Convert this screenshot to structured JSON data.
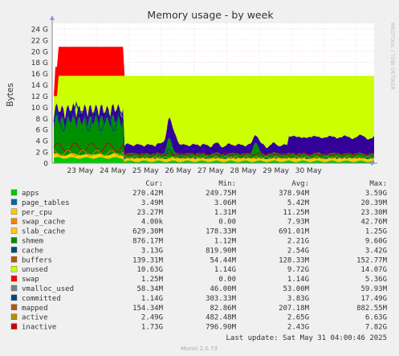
{
  "chart_data": {
    "type": "area",
    "title": "Memory usage - by week",
    "ylabel": "Bytes",
    "side_label": "RRDTOOL / TOBI OETIKER",
    "ylim": [
      0,
      25
    ],
    "y_unit": "G",
    "y_ticks": [
      "0",
      "2 G",
      "4 G",
      "6 G",
      "8 G",
      "10 G",
      "12 G",
      "14 G",
      "16 G",
      "18 G",
      "20 G",
      "22 G",
      "24 G"
    ],
    "x_ticks": [
      "23 May",
      "24 May",
      "25 May",
      "26 May",
      "27 May",
      "28 May",
      "29 May",
      "30 May"
    ],
    "grid": true,
    "legend_headers": [
      "Cur:",
      "Min:",
      "Avg:",
      "Max:"
    ],
    "series": [
      {
        "name": "apps",
        "color": "#00cc00",
        "cur": "270.42M",
        "min": "249.75M",
        "avg": "378.94M",
        "max": "3.59G"
      },
      {
        "name": "page_tables",
        "color": "#0066b3",
        "cur": "3.49M",
        "min": "3.06M",
        "avg": "5.42M",
        "max": "20.39M"
      },
      {
        "name": "per_cpu",
        "color": "#ffcc00",
        "cur": "23.27M",
        "min": "1.31M",
        "avg": "11.25M",
        "max": "23.30M"
      },
      {
        "name": "swap_cache",
        "color": "#ff8000",
        "cur": "4.00k",
        "min": "0.00",
        "avg": "7.93M",
        "max": "42.76M"
      },
      {
        "name": "slab_cache",
        "color": "#ffcc00",
        "cur": "629.30M",
        "min": "178.33M",
        "avg": "691.01M",
        "max": "1.25G"
      },
      {
        "name": "shmem",
        "color": "#008f00",
        "cur": "876.17M",
        "min": "1.12M",
        "avg": "2.21G",
        "max": "9.60G"
      },
      {
        "name": "cache",
        "color": "#00487d",
        "cur": "3.13G",
        "min": "819.90M",
        "avg": "2.54G",
        "max": "3.42G"
      },
      {
        "name": "buffers",
        "color": "#b35a00",
        "cur": "139.31M",
        "min": "54.44M",
        "avg": "128.33M",
        "max": "152.77M"
      },
      {
        "name": "unused",
        "color": "#ccff00",
        "cur": "10.63G",
        "min": "1.14G",
        "avg": "9.72G",
        "max": "14.07G"
      },
      {
        "name": "swap",
        "color": "#ff0000",
        "cur": "1.25M",
        "min": "0.00",
        "avg": "1.14G",
        "max": "5.36G"
      },
      {
        "name": "vmalloc_used",
        "color": "#808080",
        "cur": "58.34M",
        "min": "46.00M",
        "avg": "53.00M",
        "max": "59.93M"
      },
      {
        "name": "committed",
        "color": "#00487d",
        "cur": "1.14G",
        "min": "303.33M",
        "avg": "3.83G",
        "max": "17.49G"
      },
      {
        "name": "mapped",
        "color": "#b35a00",
        "cur": "154.34M",
        "min": "82.86M",
        "avg": "207.18M",
        "max": "882.55M"
      },
      {
        "name": "active",
        "color": "#b38f00",
        "cur": "2.49G",
        "min": "482.48M",
        "avg": "2.65G",
        "max": "6.63G"
      },
      {
        "name": "inactive",
        "color": "#cc0000",
        "cur": "1.73G",
        "min": "796.90M",
        "avg": "2.43G",
        "max": "7.82G"
      }
    ],
    "last_update": "Last update: Sat May 31 04:00:46 2025",
    "footer": "Munin 2.0.73"
  }
}
